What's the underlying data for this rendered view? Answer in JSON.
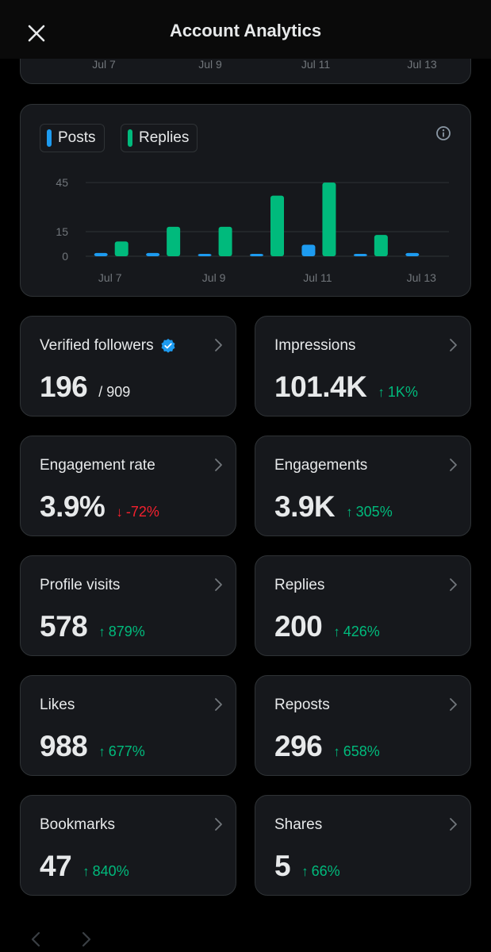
{
  "header": {
    "title": "Account Analytics"
  },
  "top_axis": [
    "Jul 7",
    "Jul 9",
    "Jul 11",
    "Jul 13"
  ],
  "legend": [
    {
      "label": "Posts",
      "color": "#1d9bf0"
    },
    {
      "label": "Replies",
      "color": "#00ba7c"
    }
  ],
  "chart_data": {
    "type": "bar",
    "categories": [
      "Jul 7",
      "Jul 8",
      "Jul 9",
      "Jul 10",
      "Jul 11",
      "Jul 12",
      "Jul 13"
    ],
    "x_tick_labels": [
      "Jul 7",
      "Jul 9",
      "Jul 11",
      "Jul 13"
    ],
    "y_ticks": [
      "45",
      "15",
      "0"
    ],
    "ylim": [
      0,
      47
    ],
    "series": [
      {
        "name": "Posts",
        "color": "#1d9bf0",
        "values": [
          2,
          2,
          1,
          1,
          7,
          1,
          2
        ]
      },
      {
        "name": "Replies",
        "color": "#00ba7c",
        "values": [
          9,
          18,
          18,
          37,
          45,
          13,
          0
        ]
      }
    ]
  },
  "stats": [
    {
      "title": "Verified followers",
      "value": "196",
      "sub": "/ 909",
      "verified": true
    },
    {
      "title": "Impressions",
      "value": "101.4K",
      "change": "1K%",
      "dir": "up"
    },
    {
      "title": "Engagement rate",
      "value": "3.9%",
      "change": "-72%",
      "dir": "down"
    },
    {
      "title": "Engagements",
      "value": "3.9K",
      "change": "305%",
      "dir": "up"
    },
    {
      "title": "Profile visits",
      "value": "578",
      "change": "879%",
      "dir": "up"
    },
    {
      "title": "Replies",
      "value": "200",
      "change": "426%",
      "dir": "up"
    },
    {
      "title": "Likes",
      "value": "988",
      "change": "677%",
      "dir": "up"
    },
    {
      "title": "Reposts",
      "value": "296",
      "change": "658%",
      "dir": "up"
    },
    {
      "title": "Bookmarks",
      "value": "47",
      "change": "840%",
      "dir": "up"
    },
    {
      "title": "Shares",
      "value": "5",
      "change": "66%",
      "dir": "up"
    }
  ],
  "colors": {
    "up": "#00ba7c",
    "down": "#f4212e",
    "accent": "#1d9bf0"
  },
  "icons": {
    "close": "close-icon",
    "info": "info-icon",
    "chevron": "chevron-right-icon",
    "verified": "verified-badge-icon",
    "prev": "chevron-left-icon",
    "next": "chevron-right-icon"
  }
}
